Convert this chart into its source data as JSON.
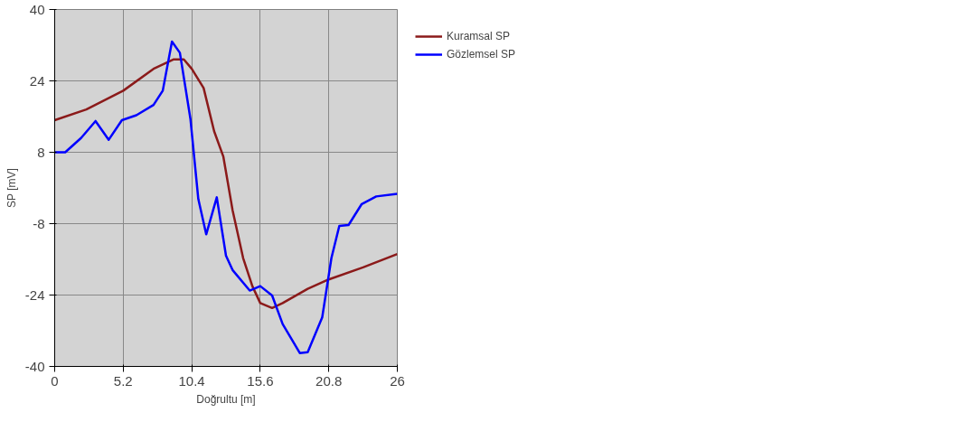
{
  "chart_data": {
    "type": "line",
    "xlabel": "Doğrultu [m]",
    "ylabel": "SP [mV]",
    "xlim": [
      0,
      26
    ],
    "ylim": [
      -40,
      40
    ],
    "xticks": [
      0,
      5.2,
      10.4,
      15.6,
      20.8,
      26
    ],
    "yticks": [
      -40,
      -24,
      -8,
      8,
      24,
      40
    ],
    "grid": true,
    "legend": "top right",
    "line_style": "solid",
    "marker": "none",
    "series": [
      {
        "name": "Kuramsal SP",
        "color": "#8b1a1a",
        "x": [
          0,
          2.4,
          5.2,
          7.5,
          9.0,
          9.8,
          10.4,
          11.3,
          12.1,
          12.8,
          13.5,
          14.3,
          15.0,
          15.6,
          16.5,
          17.3,
          19.2,
          20.8,
          23.4,
          26
        ],
        "values": [
          15.2,
          17.6,
          21.8,
          26.7,
          28.8,
          28.8,
          26.7,
          22.4,
          12.7,
          7,
          -5,
          -15.7,
          -22,
          -25.8,
          -26.9,
          -25.8,
          -22.6,
          -20.5,
          -17.8,
          -14.8
        ]
      },
      {
        "name": "Gözlemsel SP",
        "color": "#0000ff",
        "x": [
          0,
          0.8,
          2,
          3.1,
          4.1,
          5.1,
          6.2,
          7.5,
          8.2,
          8.9,
          9.5,
          10.3,
          10.9,
          11.5,
          12.3,
          13.0,
          13.5,
          14.8,
          15.6,
          16.5,
          17.3,
          18.6,
          19.2,
          20.3,
          21,
          21.6,
          22.3,
          23.3,
          24.4,
          26
        ],
        "values": [
          8,
          8,
          11.2,
          15,
          10.8,
          15.2,
          16.3,
          18.6,
          21.8,
          32.8,
          30.3,
          15.5,
          -2.5,
          -10.4,
          -2.1,
          -15.2,
          -18.4,
          -23,
          -22,
          -24.1,
          -30.5,
          -37,
          -36.8,
          -29,
          -15.7,
          -8.5,
          -8.3,
          -3.6,
          -1.9,
          -1.3
        ]
      }
    ]
  }
}
